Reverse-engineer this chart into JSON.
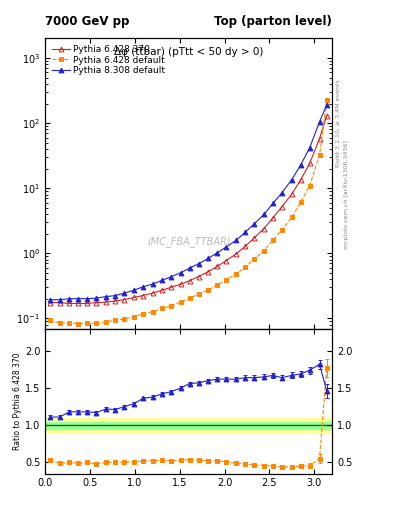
{
  "title_left": "7000 GeV pp",
  "title_right": "Top (parton level)",
  "plot_title": "Δφ (tt̅bar) (pTtt < 50 dy > 0)",
  "watermark": "(MC_FBA_TTBAR)",
  "right_label_top": "Rivet 3.1.10; ≥ 3.4M events",
  "right_label_bottom": "mcplots.cern.ch [arXiv:1306.3436]",
  "ylabel_ratio": "Ratio to Pythia 6.428 370",
  "xlim": [
    0,
    3.2
  ],
  "ylim_main": [
    0.07,
    2000
  ],
  "ylim_ratio": [
    0.35,
    2.3
  ],
  "ratio_yticks": [
    0.5,
    1.0,
    1.5,
    2.0
  ],
  "series": {
    "p6_370": {
      "label": "Pythia 6.428 370",
      "color": "#cc2222",
      "marker": "^",
      "linestyle": "-",
      "fillstyle": "none",
      "x": [
        0.05,
        0.16,
        0.27,
        0.37,
        0.47,
        0.57,
        0.68,
        0.78,
        0.88,
        0.99,
        1.09,
        1.2,
        1.3,
        1.4,
        1.51,
        1.61,
        1.71,
        1.82,
        1.92,
        2.02,
        2.13,
        2.23,
        2.33,
        2.44,
        2.54,
        2.64,
        2.75,
        2.85,
        2.95,
        3.06,
        3.14
      ],
      "y": [
        0.175,
        0.175,
        0.17,
        0.17,
        0.17,
        0.175,
        0.178,
        0.185,
        0.195,
        0.21,
        0.225,
        0.245,
        0.27,
        0.3,
        0.335,
        0.38,
        0.44,
        0.525,
        0.63,
        0.775,
        0.98,
        1.28,
        1.72,
        2.4,
        3.5,
        5.2,
        8.1,
        13.5,
        24.0,
        58.0,
        130.0
      ]
    },
    "p6_default": {
      "label": "Pythia 6.428 default",
      "color": "#ff8800",
      "marker": "s",
      "linestyle": "--",
      "fillstyle": "full",
      "x": [
        0.05,
        0.16,
        0.27,
        0.37,
        0.47,
        0.57,
        0.68,
        0.78,
        0.88,
        0.99,
        1.09,
        1.2,
        1.3,
        1.4,
        1.51,
        1.61,
        1.71,
        1.82,
        1.92,
        2.02,
        2.13,
        2.23,
        2.33,
        2.44,
        2.54,
        2.64,
        2.75,
        2.85,
        2.95,
        3.06,
        3.14
      ],
      "y": [
        0.093,
        0.086,
        0.085,
        0.083,
        0.085,
        0.084,
        0.089,
        0.093,
        0.098,
        0.107,
        0.117,
        0.127,
        0.143,
        0.156,
        0.178,
        0.205,
        0.234,
        0.273,
        0.328,
        0.395,
        0.48,
        0.615,
        0.808,
        1.1,
        1.58,
        2.3,
        3.56,
        6.08,
        11.0,
        32.0,
        230.0
      ]
    },
    "p8_default": {
      "label": "Pythia 8.308 default",
      "color": "#2222cc",
      "marker": "^",
      "linestyle": "-",
      "fillstyle": "full",
      "x": [
        0.05,
        0.16,
        0.27,
        0.37,
        0.47,
        0.57,
        0.68,
        0.78,
        0.88,
        0.99,
        1.09,
        1.2,
        1.3,
        1.4,
        1.51,
        1.61,
        1.71,
        1.82,
        1.92,
        2.02,
        2.13,
        2.23,
        2.33,
        2.44,
        2.54,
        2.64,
        2.75,
        2.85,
        2.95,
        3.06,
        3.14
      ],
      "y": [
        0.194,
        0.194,
        0.201,
        0.201,
        0.201,
        0.205,
        0.217,
        0.224,
        0.244,
        0.271,
        0.306,
        0.338,
        0.383,
        0.435,
        0.502,
        0.593,
        0.691,
        0.84,
        1.02,
        1.255,
        1.587,
        2.1,
        2.82,
        3.96,
        5.84,
        8.52,
        13.5,
        22.8,
        41.8,
        105.0,
        190.0
      ]
    }
  },
  "ratio": {
    "p6_default_over_p6_370": {
      "color": "#ff8800",
      "marker": "s",
      "linestyle": "--",
      "fillstyle": "full",
      "x": [
        0.05,
        0.16,
        0.27,
        0.37,
        0.47,
        0.57,
        0.68,
        0.78,
        0.88,
        0.99,
        1.09,
        1.2,
        1.3,
        1.4,
        1.51,
        1.61,
        1.71,
        1.82,
        1.92,
        2.02,
        2.13,
        2.23,
        2.33,
        2.44,
        2.54,
        2.64,
        2.75,
        2.85,
        2.95,
        3.06,
        3.14
      ],
      "y": [
        0.531,
        0.491,
        0.5,
        0.488,
        0.5,
        0.48,
        0.5,
        0.503,
        0.503,
        0.51,
        0.52,
        0.52,
        0.53,
        0.52,
        0.531,
        0.539,
        0.532,
        0.52,
        0.521,
        0.51,
        0.49,
        0.48,
        0.47,
        0.458,
        0.451,
        0.442,
        0.44,
        0.45,
        0.458,
        0.552,
        1.77
      ],
      "yerr": [
        0.025,
        0.02,
        0.02,
        0.02,
        0.02,
        0.02,
        0.02,
        0.02,
        0.02,
        0.02,
        0.02,
        0.02,
        0.02,
        0.02,
        0.02,
        0.02,
        0.02,
        0.02,
        0.02,
        0.02,
        0.02,
        0.02,
        0.02,
        0.025,
        0.025,
        0.025,
        0.03,
        0.03,
        0.035,
        0.06,
        0.12
      ]
    },
    "p8_default_over_p6_370": {
      "color": "#2222cc",
      "marker": "^",
      "linestyle": "-",
      "fillstyle": "full",
      "x": [
        0.05,
        0.16,
        0.27,
        0.37,
        0.47,
        0.57,
        0.68,
        0.78,
        0.88,
        0.99,
        1.09,
        1.2,
        1.3,
        1.4,
        1.51,
        1.61,
        1.71,
        1.82,
        1.92,
        2.02,
        2.13,
        2.23,
        2.33,
        2.44,
        2.54,
        2.64,
        2.75,
        2.85,
        2.95,
        3.06,
        3.14
      ],
      "y": [
        1.11,
        1.11,
        1.18,
        1.18,
        1.18,
        1.17,
        1.22,
        1.21,
        1.25,
        1.29,
        1.36,
        1.38,
        1.42,
        1.45,
        1.5,
        1.56,
        1.57,
        1.6,
        1.62,
        1.62,
        1.62,
        1.64,
        1.64,
        1.65,
        1.67,
        1.64,
        1.67,
        1.69,
        1.74,
        1.82,
        1.46
      ],
      "yerr": [
        0.03,
        0.025,
        0.025,
        0.025,
        0.025,
        0.025,
        0.025,
        0.025,
        0.025,
        0.025,
        0.025,
        0.025,
        0.025,
        0.025,
        0.025,
        0.025,
        0.025,
        0.025,
        0.025,
        0.03,
        0.03,
        0.03,
        0.03,
        0.035,
        0.035,
        0.035,
        0.04,
        0.04,
        0.045,
        0.06,
        0.1
      ]
    }
  },
  "ref_band_yellow": "#ffff99",
  "ref_band_green": "#99ff99",
  "ref_line_color": "#007700",
  "ref_band_y1": 0.9,
  "ref_band_y2": 1.1,
  "ref_band_inner_y1": 0.95,
  "ref_band_inner_y2": 1.05,
  "background_color": "#ffffff"
}
